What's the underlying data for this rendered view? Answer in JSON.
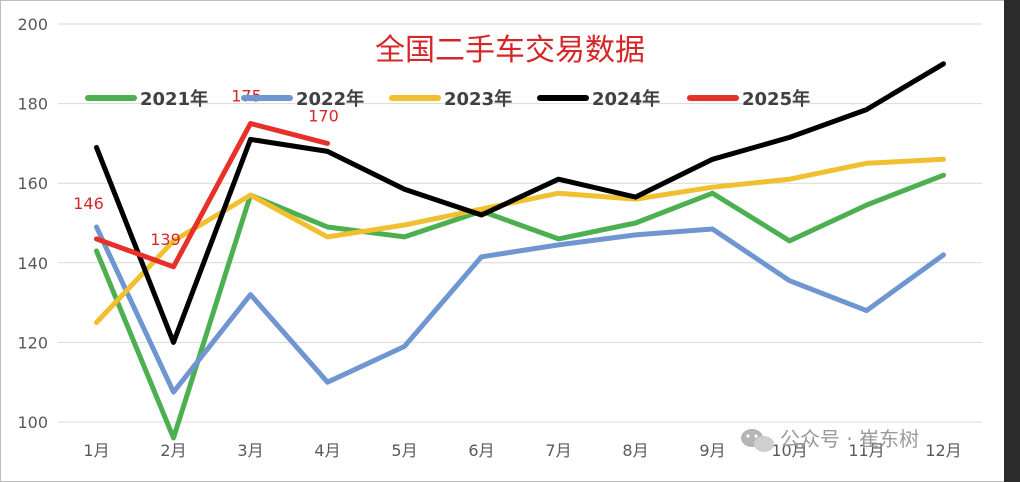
{
  "chart_data": {
    "type": "line",
    "title": "全国二手车交易数据",
    "categories": [
      "1月",
      "2月",
      "3月",
      "4月",
      "5月",
      "6月",
      "7月",
      "8月",
      "9月",
      "10月",
      "11月",
      "12月"
    ],
    "ylim": [
      100,
      200
    ],
    "yticks": [
      100,
      120,
      140,
      160,
      180,
      200
    ],
    "grid": "horizontal",
    "legend_placement": "top",
    "series": [
      {
        "name": "2021年",
        "color": "#4caf50",
        "values": [
          143,
          96,
          157,
          149,
          146.5,
          153,
          146,
          150,
          157.5,
          145.5,
          154.5,
          162
        ]
      },
      {
        "name": "2022年",
        "color": "#6f96d1",
        "values": [
          149,
          107.5,
          132,
          110,
          119,
          141.5,
          144.5,
          147,
          148.5,
          135.5,
          128,
          142
        ]
      },
      {
        "name": "2023年",
        "color": "#f0c030",
        "values": [
          125,
          145.5,
          157,
          146.5,
          149.5,
          153.5,
          157.5,
          156,
          159,
          161,
          165,
          166
        ]
      },
      {
        "name": "2024年",
        "color": "#000000",
        "values": [
          169,
          120,
          171,
          168,
          158.5,
          152,
          161,
          156.5,
          166,
          171.5,
          178.5,
          190
        ]
      },
      {
        "name": "2025年",
        "color": "#e8302a",
        "values": [
          146,
          139,
          175,
          170,
          null,
          null,
          null,
          null,
          null,
          null,
          null,
          null
        ]
      }
    ],
    "data_labels": [
      "146",
      "139",
      "175",
      "170"
    ]
  },
  "watermark": {
    "icon": "wechat-icon",
    "text": "公众号 · 崔东树"
  }
}
